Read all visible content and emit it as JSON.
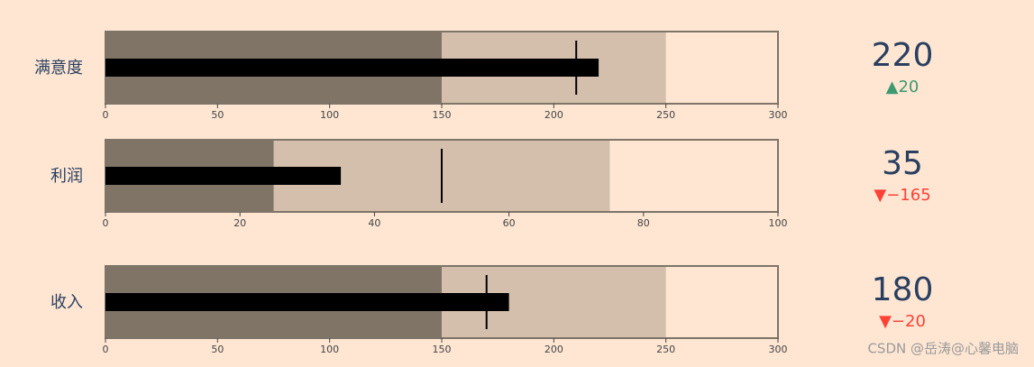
{
  "chart_data": [
    {
      "type": "bullet",
      "title": "满意度",
      "value": 220,
      "delta": {
        "value": 20,
        "label": "▲20",
        "color": "#3d9970"
      },
      "xlim": [
        0,
        300
      ],
      "xticks": [
        0,
        50,
        100,
        150,
        200,
        250,
        300
      ],
      "steps": [
        {
          "range": [
            0,
            150
          ],
          "color": "#807467"
        },
        {
          "range": [
            150,
            250
          ],
          "color": "#d4bfad"
        }
      ],
      "threshold": 210,
      "bar_color": "#000000"
    },
    {
      "type": "bullet",
      "title": "利润",
      "value": 35,
      "delta": {
        "value": -165,
        "label": "▼−165",
        "color": "#ff4136"
      },
      "xlim": [
        0,
        100
      ],
      "xticks": [
        0,
        20,
        40,
        60,
        80,
        100
      ],
      "steps": [
        {
          "range": [
            0,
            25
          ],
          "color": "#807467"
        },
        {
          "range": [
            25,
            75
          ],
          "color": "#d4bfad"
        }
      ],
      "threshold": 50,
      "bar_color": "#000000"
    },
    {
      "type": "bullet",
      "title": "收入",
      "value": 180,
      "delta": {
        "value": -20,
        "label": "▼−20",
        "color": "#ff4136"
      },
      "xlim": [
        0,
        300
      ],
      "xticks": [
        0,
        50,
        100,
        150,
        200,
        250,
        300
      ],
      "steps": [
        {
          "range": [
            0,
            150
          ],
          "color": "#807467"
        },
        {
          "range": [
            150,
            250
          ],
          "color": "#d4bfad"
        }
      ],
      "threshold": 170,
      "bar_color": "#000000"
    }
  ],
  "watermark": "CSDN @岳涛@心馨电脑"
}
